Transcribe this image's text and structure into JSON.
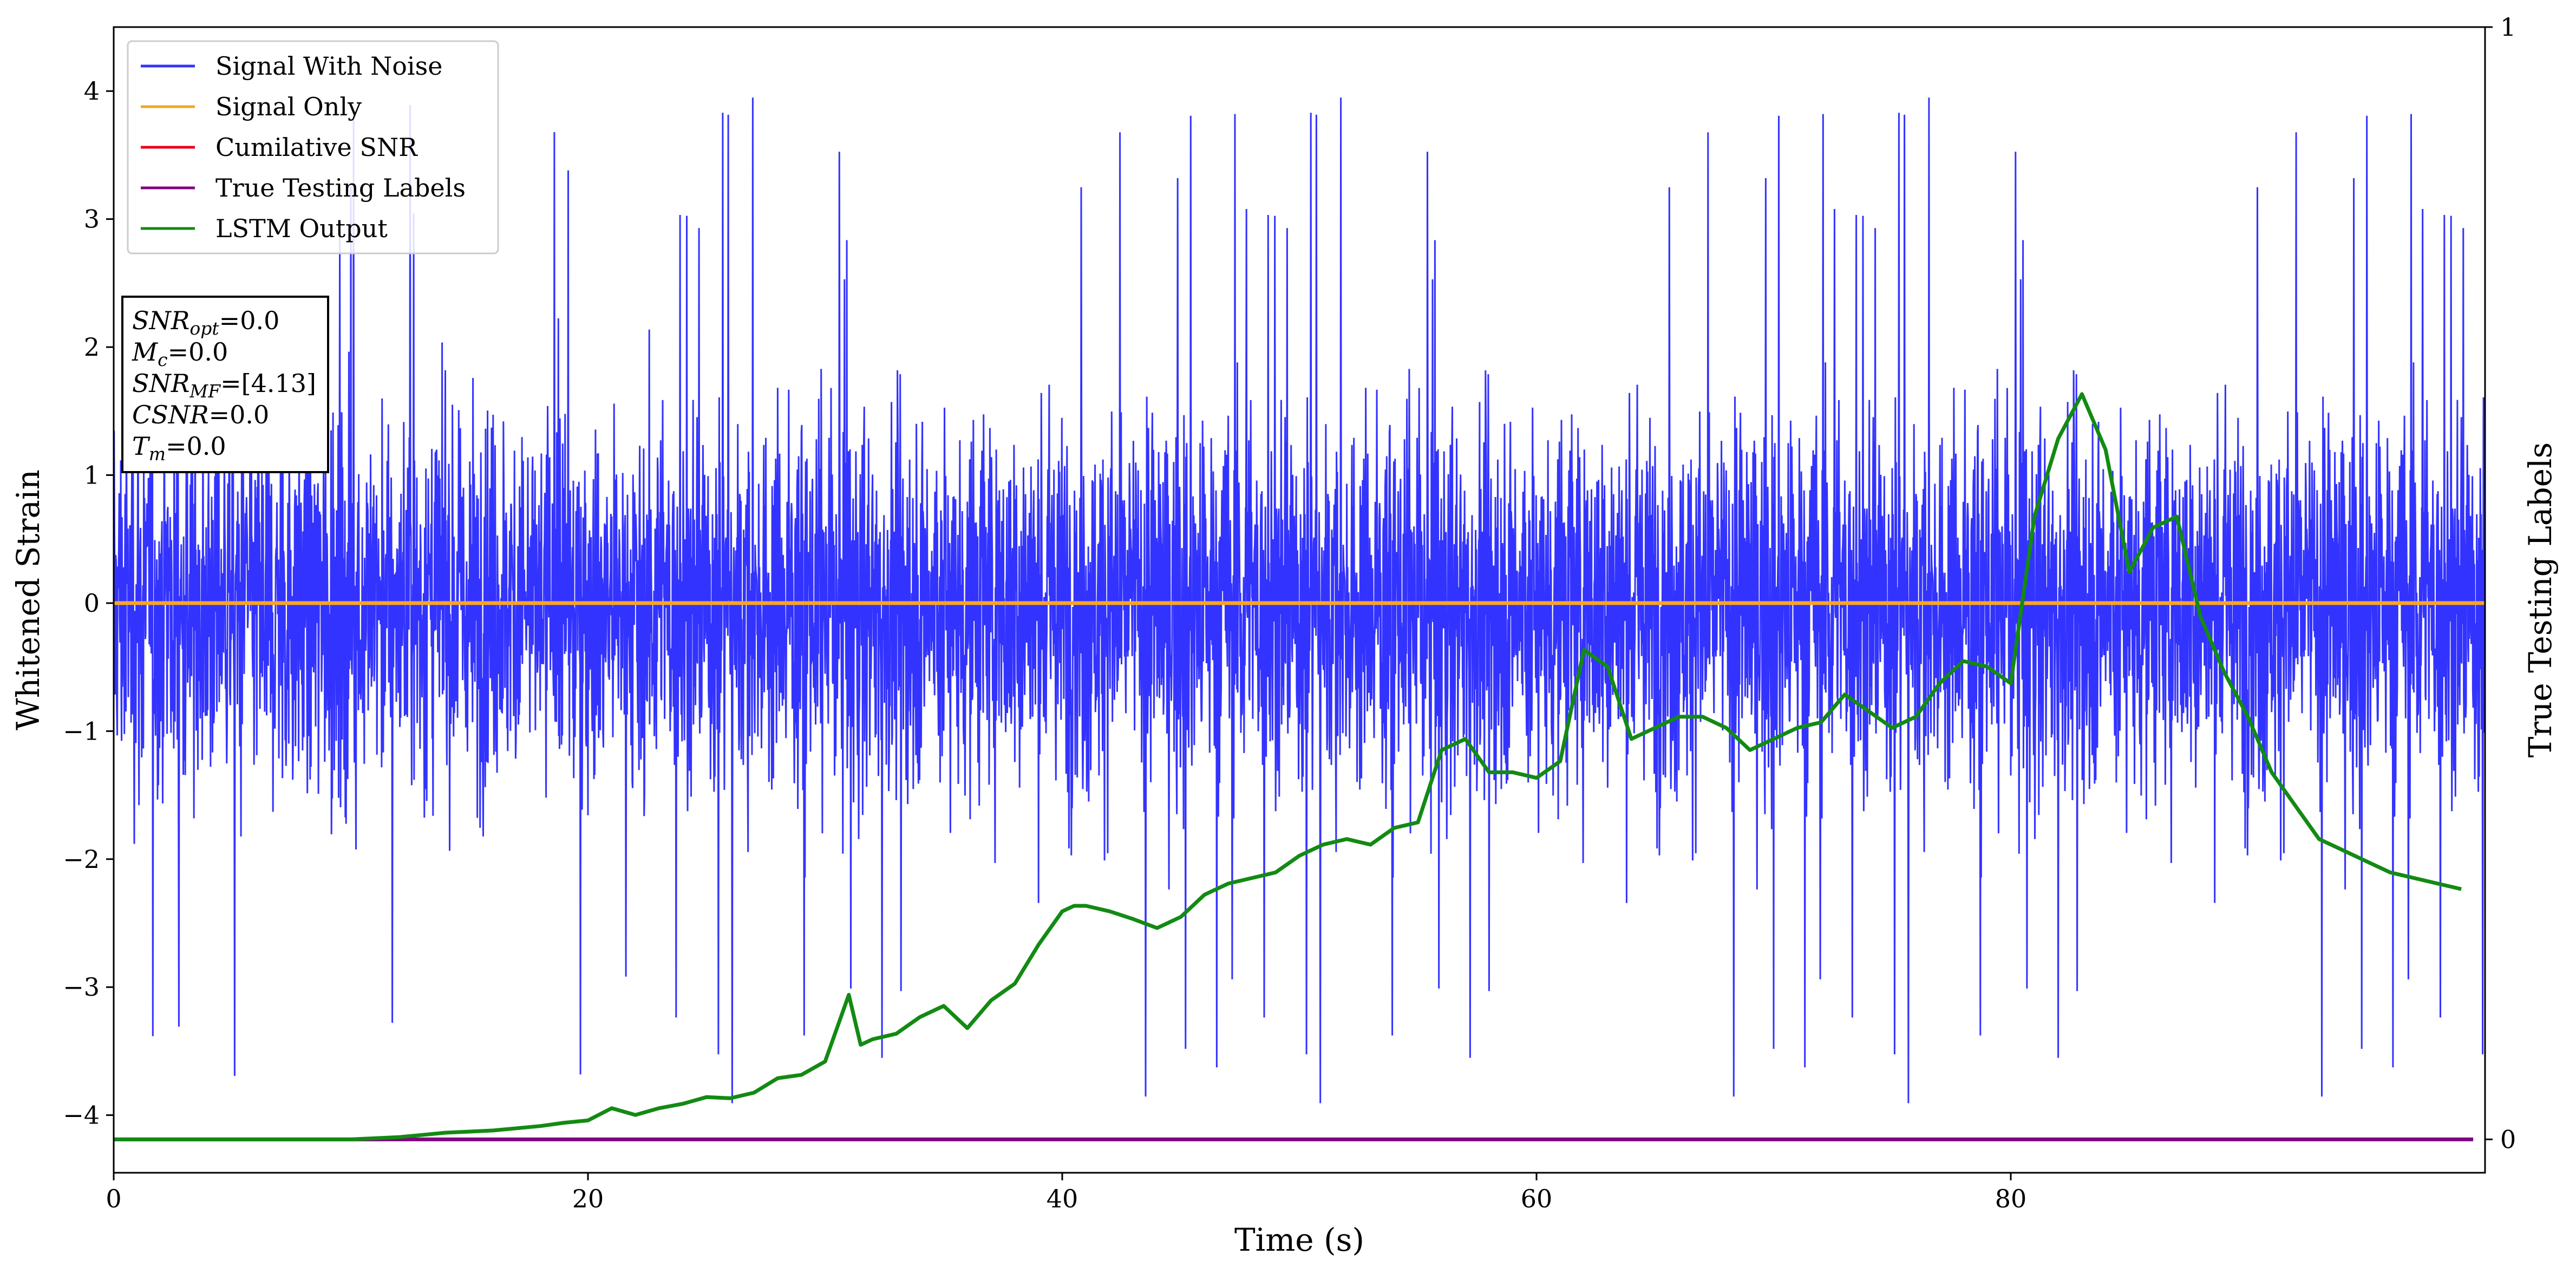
{
  "chart_data": {
    "type": "line",
    "xlabel": "Time (s)",
    "ylabel": "Whitened Strain",
    "y2label": "True Testing Labels",
    "xlim": [
      0,
      100
    ],
    "ylim": [
      -4.45,
      4.5
    ],
    "y2lim": [
      -0.03,
      1.0
    ],
    "x_ticks": [
      0,
      20,
      40,
      60,
      80
    ],
    "y_ticks": [
      -4,
      -3,
      -2,
      -1,
      0,
      1,
      2,
      3,
      4
    ],
    "y2_ticks": [
      0,
      1
    ],
    "grid": false,
    "legend_position": "top-left",
    "colors": {
      "signal_with_noise": "#3333ff",
      "signal_only": "#f5a623",
      "cumulative_snr": "#e6001a",
      "true_labels": "#800080",
      "lstm_output": "#138a13"
    },
    "noise_envelope": {
      "typical_range": [
        -2.3,
        2.3
      ],
      "min": -4.07,
      "max": 4.03
    },
    "series": [
      {
        "name": "Signal With Noise",
        "axis": "left",
        "description_values": "white noise spanning roughly ±2.3"
      },
      {
        "name": "Signal Only",
        "axis": "left",
        "x": [
          0,
          100
        ],
        "y": [
          0,
          0
        ]
      },
      {
        "name": "Cumilative SNR",
        "axis": "left",
        "x": [],
        "y": []
      },
      {
        "name": "True Testing Labels",
        "axis": "right",
        "x": [
          0,
          99.5
        ],
        "y": [
          0,
          0
        ]
      },
      {
        "name": "LSTM Output",
        "axis": "right",
        "x": [
          0,
          10,
          12,
          13,
          14,
          15,
          16,
          17,
          18,
          19,
          20,
          21,
          22,
          23,
          24,
          25,
          26,
          27,
          28,
          29,
          30,
          31,
          31.5,
          32,
          33,
          34,
          35,
          36,
          37,
          38,
          39,
          40,
          40.5,
          41,
          42,
          43,
          44,
          45,
          46,
          47,
          48,
          49,
          50,
          51,
          52,
          53,
          54,
          55,
          56,
          57,
          58,
          59,
          60,
          61,
          62,
          63,
          64,
          65,
          66,
          67,
          68,
          69,
          70,
          71,
          72,
          73,
          74,
          75,
          76,
          77,
          78,
          79,
          80,
          81,
          82,
          83,
          84,
          85,
          86,
          87,
          88,
          89,
          90,
          91,
          92,
          93,
          94,
          95,
          96,
          97,
          98,
          99
        ],
        "y": [
          0,
          0,
          0.002,
          0.004,
          0.006,
          0.007,
          0.008,
          0.01,
          0.012,
          0.015,
          0.017,
          0.028,
          0.022,
          0.028,
          0.032,
          0.038,
          0.037,
          0.042,
          0.055,
          0.058,
          0.07,
          0.13,
          0.085,
          0.09,
          0.095,
          0.11,
          0.12,
          0.1,
          0.125,
          0.14,
          0.175,
          0.205,
          0.21,
          0.21,
          0.205,
          0.198,
          0.19,
          0.2,
          0.22,
          0.23,
          0.235,
          0.24,
          0.255,
          0.265,
          0.27,
          0.265,
          0.28,
          0.285,
          0.35,
          0.36,
          0.33,
          0.33,
          0.325,
          0.34,
          0.44,
          0.425,
          0.36,
          0.37,
          0.38,
          0.38,
          0.37,
          0.35,
          0.36,
          0.37,
          0.375,
          0.4,
          0.385,
          0.37,
          0.38,
          0.41,
          0.43,
          0.425,
          0.41,
          0.56,
          0.63,
          0.67,
          0.62,
          0.51,
          0.55,
          0.56,
          0.47,
          0.42,
          0.38,
          0.33,
          0.3,
          0.27,
          0.26,
          0.25,
          0.24,
          0.235,
          0.23,
          0.225
        ]
      }
    ],
    "annotation_box": [
      {
        "symbol": "SNR",
        "sub": "opt",
        "value": "=0.0"
      },
      {
        "symbol": "M",
        "sub": "c",
        "value": "=0.0"
      },
      {
        "symbol": "SNR",
        "sub": "MF",
        "value": "=[4.13]"
      },
      {
        "symbol": "CSNR",
        "sub": "",
        "value": "=0.0"
      },
      {
        "symbol": "T",
        "sub": "m",
        "value": "=0.0"
      }
    ]
  }
}
